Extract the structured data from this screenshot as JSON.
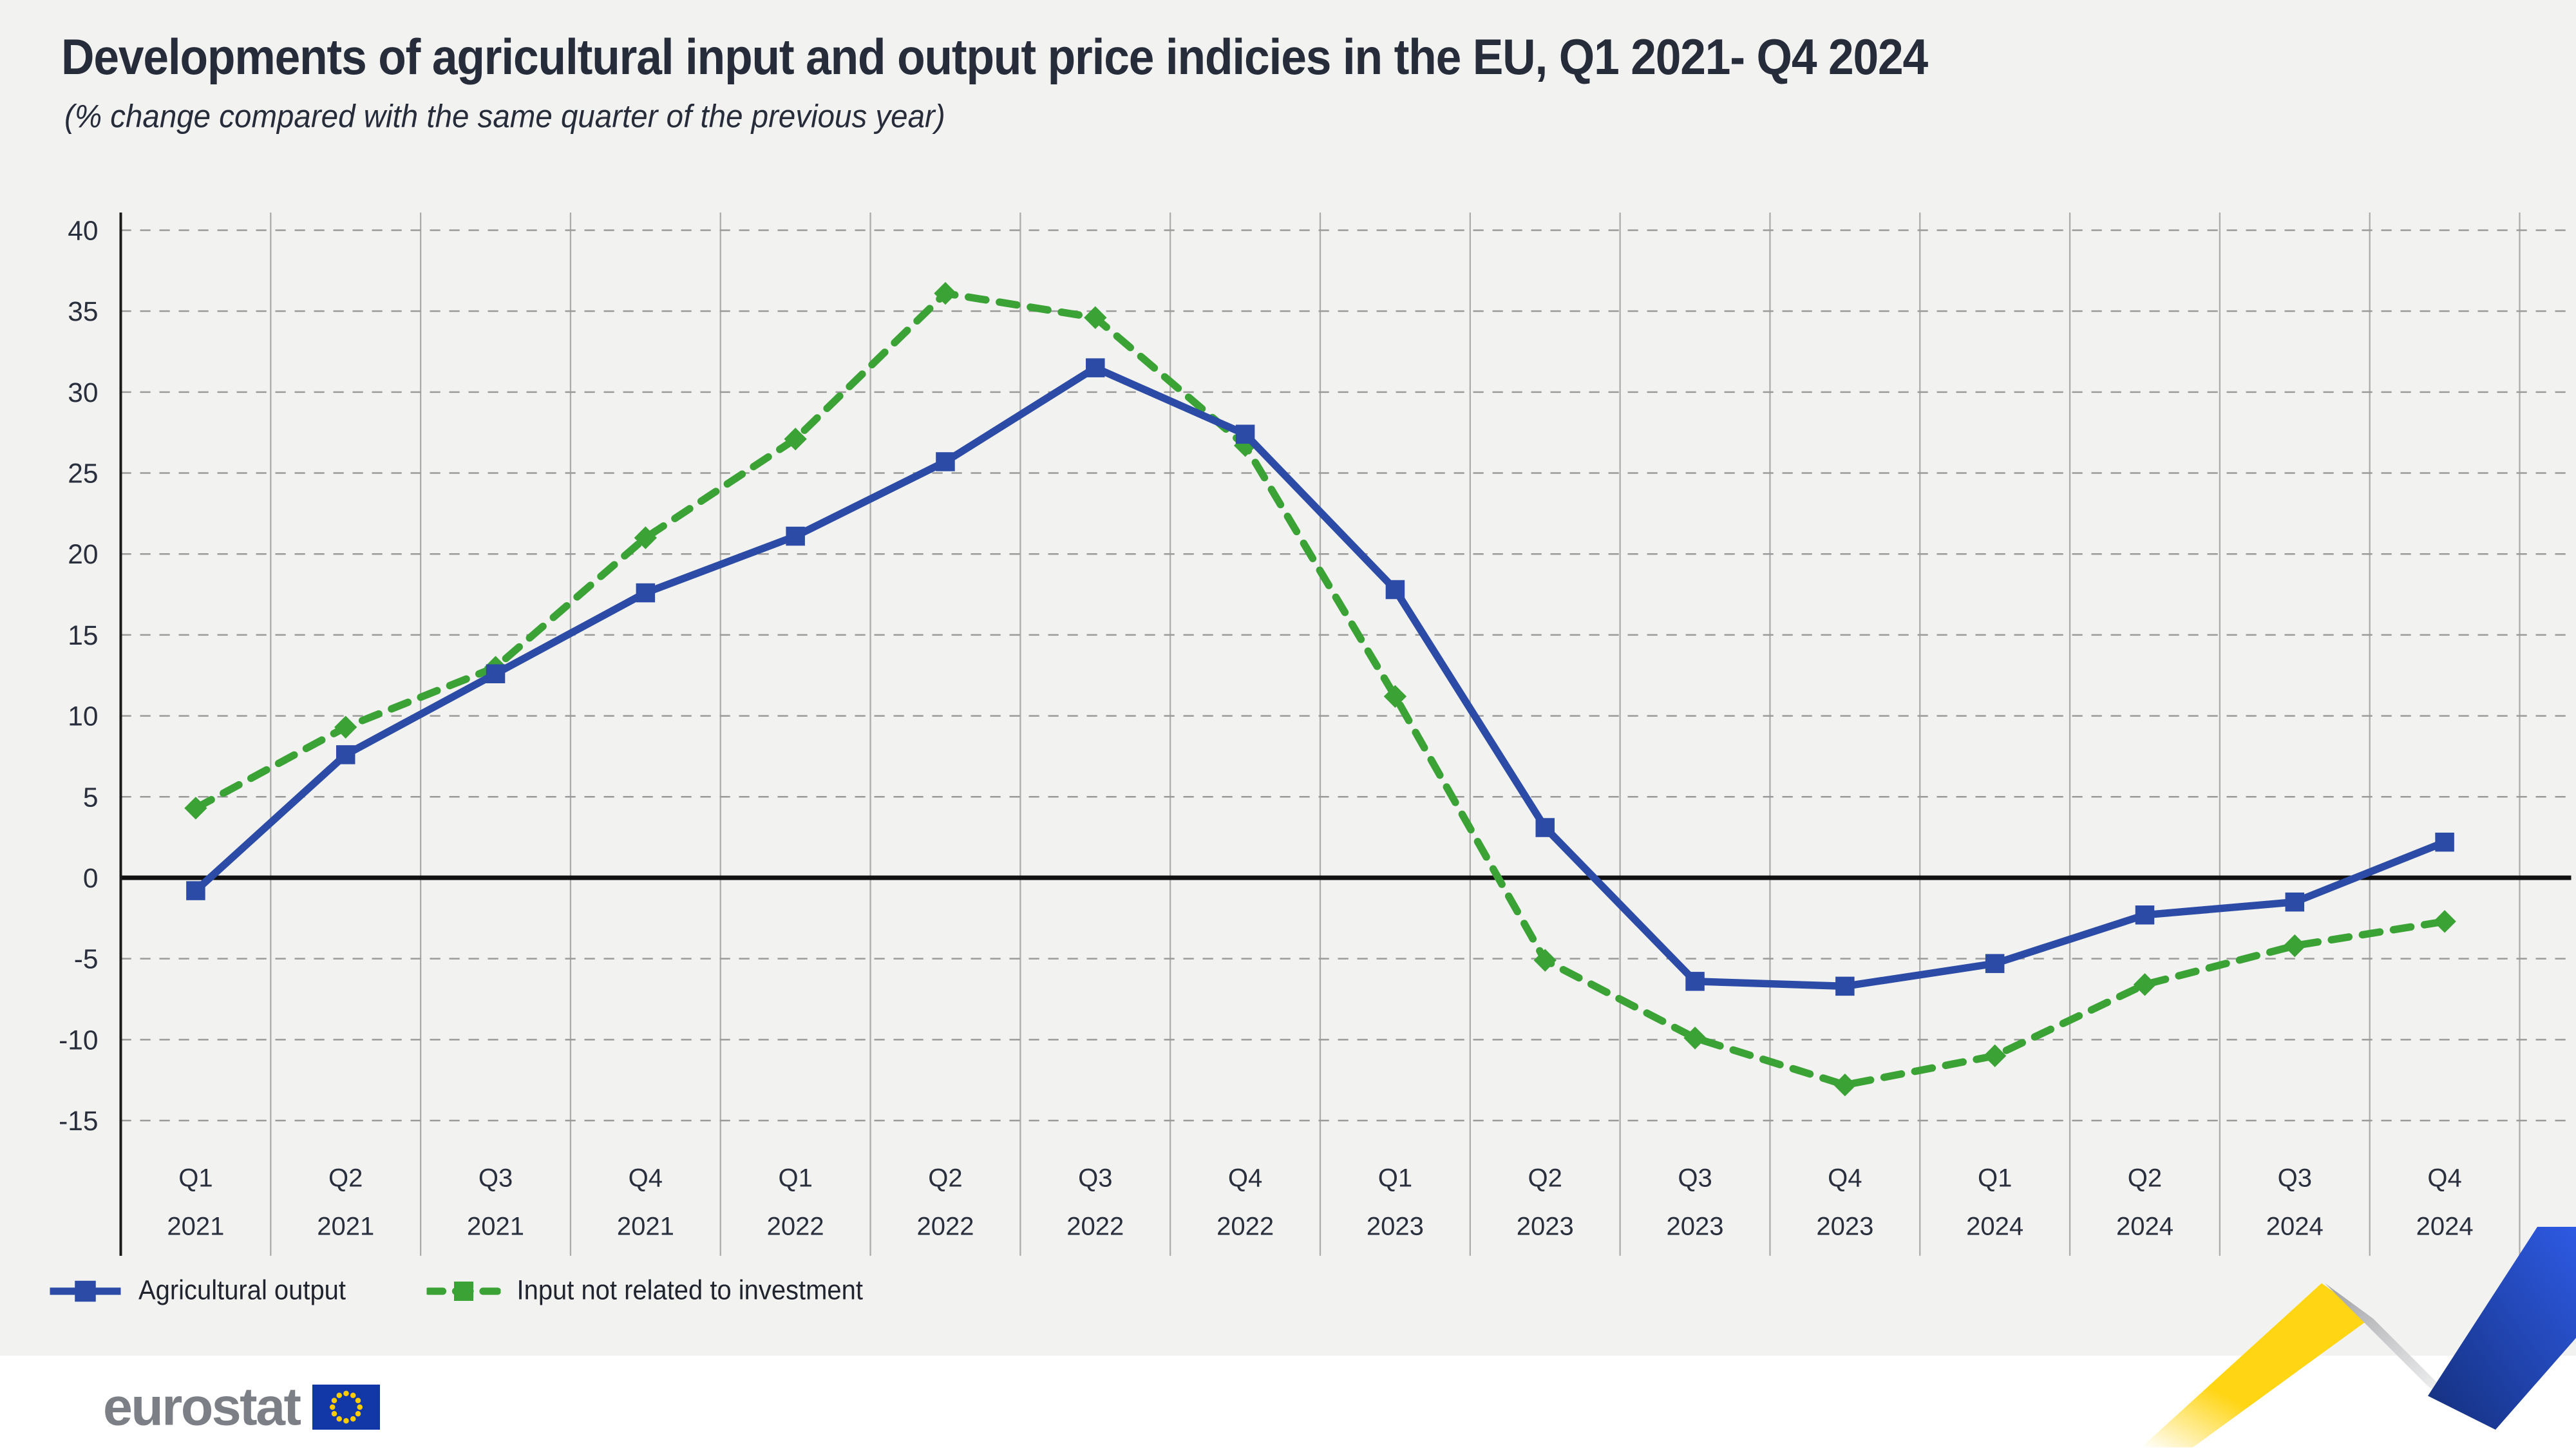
{
  "header": {
    "title": "Developments of agricultural input and output price indicies in the EU, Q1 2021- Q4 2024",
    "subtitle": "(% change compared with the same quarter of the previous year)"
  },
  "legend": [
    {
      "label": "Agricultural output",
      "color": "#2C4BA6",
      "line": "solid",
      "marker": "square"
    },
    {
      "label": "Input not related to investment",
      "color": "#3BA235",
      "line": "dashed",
      "marker": "diamond"
    }
  ],
  "footer": {
    "brand": "eurostat"
  },
  "colors": {
    "background": "#F2F2F0",
    "footer_band": "#FFFFFF",
    "title_text": "#272C3B",
    "axis_text": "#2A2F3E",
    "vertical_gridline": "#ABABAB",
    "horizontal_gridline": "#9B9B9B",
    "zero_line": "#111111",
    "series_output_blue": "#2C4BA6",
    "series_input_green": "#3BA235",
    "logo_text_gray": "#7C8086",
    "eu_flag_blue": "#1238A8",
    "eu_flag_stars": "#FFCC00",
    "ribbon_yellow": "#FFD514",
    "ribbon_blue_dark": "#142F7C",
    "ribbon_blue_bright": "#2E5AE3",
    "ribbon_gray": "#A6A8AB"
  },
  "chart_data": {
    "type": "line",
    "title": "Developments of agricultural input and output price indicies in the EU, Q1 2021- Q4 2024",
    "subtitle": "(% change compared with the same quarter of the previous year)",
    "xlabel": "",
    "ylabel": "",
    "ylim": [
      -15,
      40
    ],
    "y_step": 5,
    "y_ticks": [
      40,
      35,
      30,
      25,
      20,
      15,
      10,
      5,
      0,
      -5,
      -10,
      -15
    ],
    "grid": "horizontal-dashed, vertical-solid-category-boundaries",
    "legend_position": "bottom-left",
    "categories": [
      {
        "q": "Q1",
        "year": "2021"
      },
      {
        "q": "Q2",
        "year": "2021"
      },
      {
        "q": "Q3",
        "year": "2021"
      },
      {
        "q": "Q4",
        "year": "2021"
      },
      {
        "q": "Q1",
        "year": "2022"
      },
      {
        "q": "Q2",
        "year": "2022"
      },
      {
        "q": "Q3",
        "year": "2022"
      },
      {
        "q": "Q4",
        "year": "2022"
      },
      {
        "q": "Q1",
        "year": "2023"
      },
      {
        "q": "Q2",
        "year": "2023"
      },
      {
        "q": "Q3",
        "year": "2023"
      },
      {
        "q": "Q4",
        "year": "2023"
      },
      {
        "q": "Q1",
        "year": "2024"
      },
      {
        "q": "Q2",
        "year": "2024"
      },
      {
        "q": "Q3",
        "year": "2024"
      },
      {
        "q": "Q4",
        "year": "2024"
      }
    ],
    "series": [
      {
        "name": "Agricultural output",
        "color": "#2C4BA6",
        "style": "solid",
        "marker": "square",
        "values": [
          -0.8,
          7.6,
          12.6,
          17.6,
          21.1,
          25.7,
          31.5,
          27.4,
          17.8,
          3.1,
          -6.4,
          -6.7,
          -5.3,
          -2.3,
          -1.5,
          2.2
        ]
      },
      {
        "name": "Input not related to investment",
        "color": "#3BA235",
        "style": "dashed",
        "marker": "diamond",
        "values": [
          4.3,
          9.3,
          13.0,
          21.0,
          27.1,
          36.1,
          34.6,
          26.7,
          11.2,
          -5.1,
          -9.9,
          -12.8,
          -11.0,
          -6.6,
          -4.2,
          -2.7
        ]
      }
    ]
  }
}
